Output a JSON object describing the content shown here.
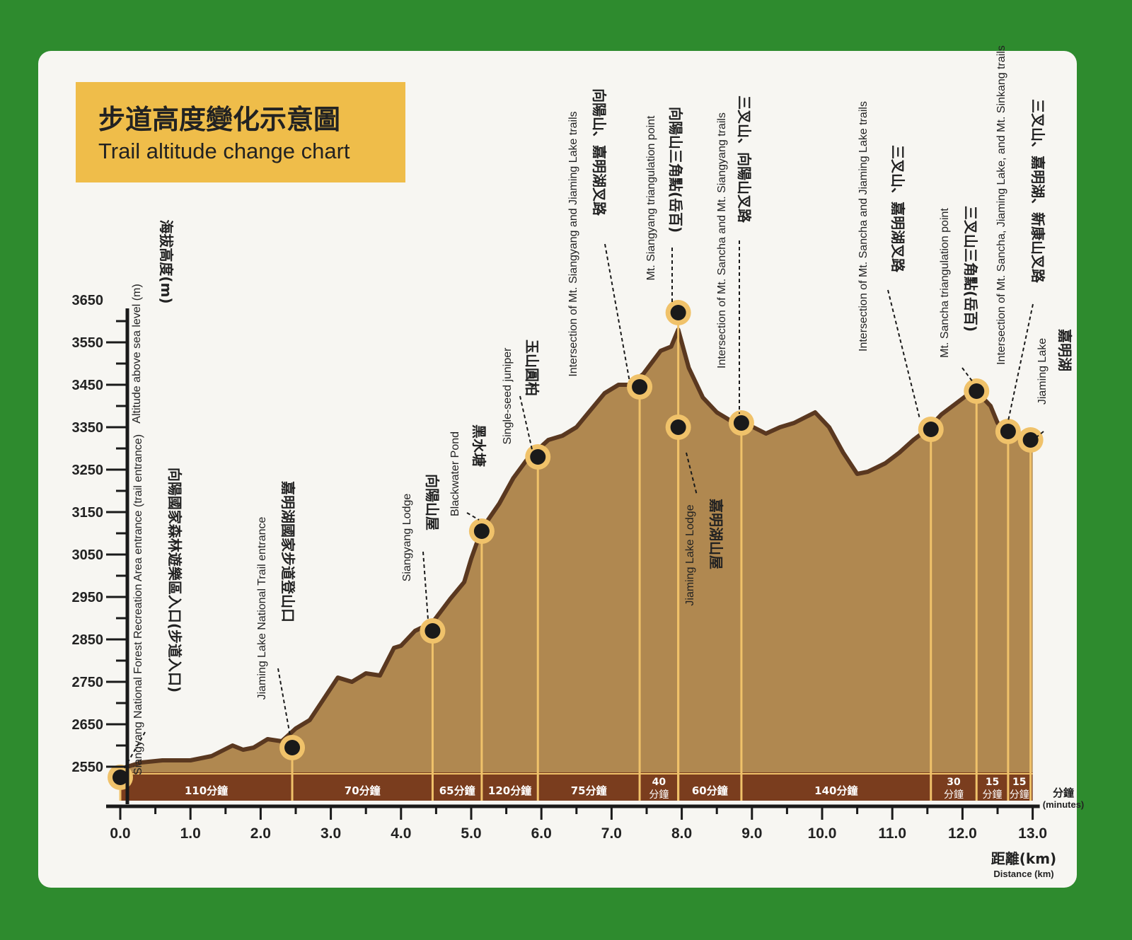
{
  "colors": {
    "background": "#2e8b2e",
    "board": "#f7f6f2",
    "title_box": "#efbd4a",
    "fill": "#b08850",
    "outline": "#5a3820",
    "band": "#7a3d1e",
    "marker_ring": "#f0c26a",
    "marker_core": "#1a1a1a"
  },
  "title": {
    "cn": "步道高度變化示意圖",
    "en": "Trail altitude change chart"
  },
  "chart_data": {
    "type": "area",
    "title": "步道高度變化示意圖 Trail altitude change chart",
    "ylabel": {
      "cn": "海拔高度(m)",
      "en": "Altitude above sea level (m)"
    },
    "xlabel": {
      "cn": "距離(km)",
      "en": "Distance (km)"
    },
    "xlim": [
      0,
      13.0
    ],
    "ylim": [
      2500,
      3650
    ],
    "x_ticks": [
      "0.0",
      "1.0",
      "2.0",
      "3.0",
      "4.0",
      "5.0",
      "6.0",
      "7.0",
      "8.0",
      "9.0",
      "10.0",
      "11.0",
      "12.0",
      "13.0"
    ],
    "y_ticks": [
      "2550",
      "2650",
      "2750",
      "2850",
      "2950",
      "3050",
      "3150",
      "3250",
      "3350",
      "3450",
      "3550",
      "3650"
    ],
    "profile": {
      "x": [
        0.0,
        0.3,
        0.6,
        1.0,
        1.3,
        1.6,
        1.75,
        1.9,
        2.1,
        2.3,
        2.5,
        2.7,
        2.9,
        3.1,
        3.3,
        3.5,
        3.7,
        3.9,
        4.0,
        4.2,
        4.45,
        4.7,
        4.9,
        5.0,
        5.15,
        5.4,
        5.6,
        5.8,
        5.9,
        6.1,
        6.3,
        6.5,
        6.7,
        6.9,
        7.1,
        7.25,
        7.45,
        7.7,
        7.85,
        7.95,
        8.1,
        8.3,
        8.5,
        8.7,
        8.9,
        9.2,
        9.4,
        9.6,
        9.9,
        10.1,
        10.3,
        10.5,
        10.65,
        10.9,
        11.1,
        11.3,
        11.5,
        11.7,
        11.9,
        12.1,
        12.2,
        12.4,
        12.5,
        12.65,
        12.8,
        12.95,
        13.0
      ],
      "y": [
        2545,
        2560,
        2565,
        2565,
        2575,
        2600,
        2590,
        2595,
        2615,
        2610,
        2640,
        2660,
        2710,
        2760,
        2750,
        2770,
        2765,
        2830,
        2835,
        2870,
        2890,
        2945,
        2985,
        3040,
        3110,
        3170,
        3230,
        3275,
        3290,
        3320,
        3330,
        3350,
        3390,
        3430,
        3450,
        3450,
        3475,
        3530,
        3540,
        3580,
        3490,
        3420,
        3385,
        3365,
        3360,
        3335,
        3350,
        3360,
        3385,
        3350,
        3290,
        3240,
        3245,
        3265,
        3290,
        3320,
        3345,
        3380,
        3405,
        3430,
        3435,
        3400,
        3360,
        3340,
        3335,
        3320,
        3315
      ]
    },
    "points": [
      {
        "name_en": "Siangyang National Forest Recreation Area entrance (trail entrance)",
        "name_cn": "向陽國家森林遊樂區入口(步道入口)",
        "x": 0.0,
        "y": 2525
      },
      {
        "name_en": "Jiaming Lake National Trail entrance",
        "name_cn": "嘉明湖國家步道登山口",
        "x": 2.45,
        "y": 2595
      },
      {
        "name_en": "Siangyang Lodge",
        "name_cn": "向陽山屋",
        "x": 4.45,
        "y": 2870
      },
      {
        "name_en": "Blackwater Pond",
        "name_cn": "黑水塘",
        "x": 5.15,
        "y": 3105
      },
      {
        "name_en": "Single-seed juniper",
        "name_cn": "玉山圓柏",
        "x": 5.95,
        "y": 3280
      },
      {
        "name_en": "Intersection of Mt. Siangyang and Jiaming Lake trails",
        "name_cn": "向陽山、嘉明湖叉路",
        "x": 7.4,
        "y": 3445
      },
      {
        "name_en": "Mt. Siangyang triangulation point",
        "name_cn": "向陽山三角點(岳百)",
        "x": 7.95,
        "y": 3620
      },
      {
        "name_en": "Jiaming Lake Lodge",
        "name_cn": "嘉明湖山屋",
        "x": 7.95,
        "y": 3350
      },
      {
        "name_en": "Intersection of Mt. Sancha and Mt. Siangyang trails",
        "name_cn": "三叉山、向陽山叉路",
        "x": 8.85,
        "y": 3360
      },
      {
        "name_en": "Intersection of Mt. Sancha and Jiaming Lake trails",
        "name_cn": "三叉山、嘉明湖叉路",
        "x": 11.55,
        "y": 3345
      },
      {
        "name_en": "Mt. Sancha triangulation point",
        "name_cn": "三叉山三角點(岳百)",
        "x": 12.2,
        "y": 3435
      },
      {
        "name_en": "Intersection of Mt. Sancha, Jiaming Lake, and Mt. Sinkang trails",
        "name_cn": "三叉山、嘉明湖、新康山叉路",
        "x": 12.65,
        "y": 3340
      },
      {
        "name_en": "Jiaming Lake",
        "name_cn": "嘉明湖",
        "x": 12.97,
        "y": 3320
      }
    ],
    "time_segments": [
      {
        "label": "110分鐘",
        "from": 0.0,
        "to": 2.45
      },
      {
        "label": "70分鐘",
        "from": 2.45,
        "to": 4.45
      },
      {
        "label": "65分鐘",
        "from": 4.45,
        "to": 5.15
      },
      {
        "label": "120分鐘",
        "from": 5.15,
        "to": 5.95
      },
      {
        "label": "75分鐘",
        "from": 5.95,
        "to": 7.4
      },
      {
        "label": "40\n分鐘",
        "from": 7.4,
        "to": 7.95
      },
      {
        "label": "60分鐘",
        "from": 7.95,
        "to": 8.85
      },
      {
        "label": "140分鐘",
        "from": 8.85,
        "to": 11.55
      },
      {
        "label": "30\n分鐘",
        "from": 11.55,
        "to": 12.2
      },
      {
        "label": "15\n分鐘",
        "from": 12.2,
        "to": 12.65
      },
      {
        "label": "15\n分鐘",
        "from": 12.65,
        "to": 12.97
      }
    ],
    "time_unit": {
      "cn": "分鐘",
      "en": "(minutes)"
    }
  }
}
